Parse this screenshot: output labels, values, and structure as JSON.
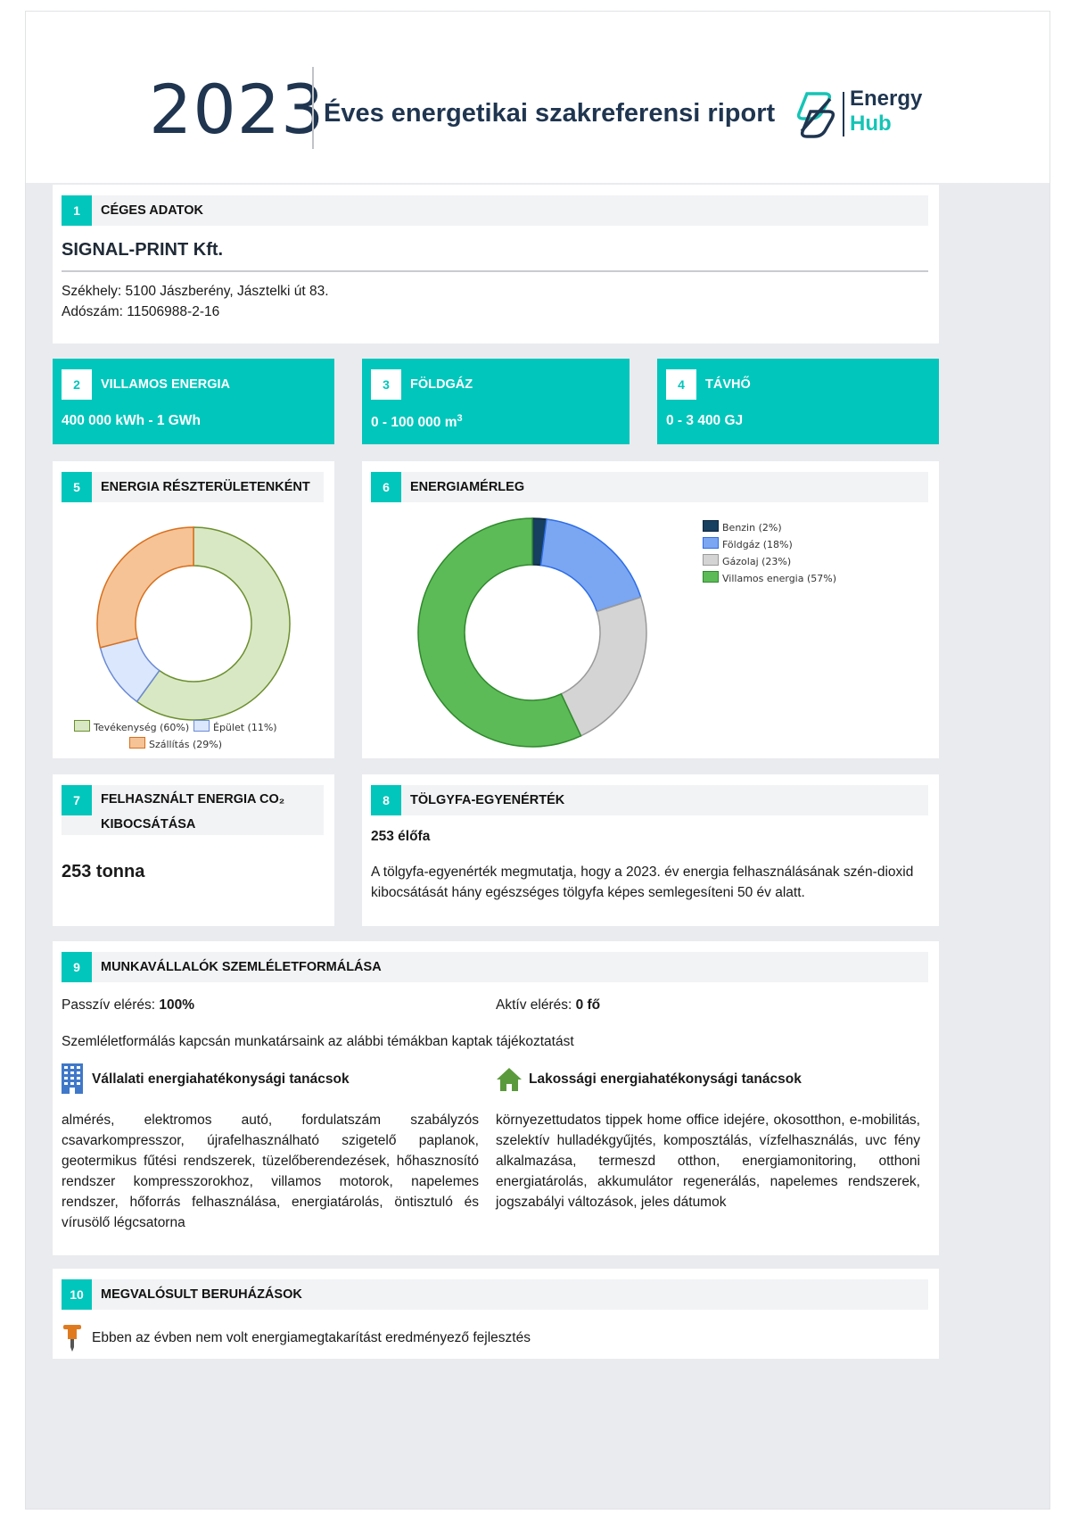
{
  "header": {
    "year": "2023",
    "title": "Éves energetikai szakreferensi riport",
    "logo_line1": "Energy",
    "logo_line2": "Hub"
  },
  "s1": {
    "num": "1",
    "title": "CÉGES ADATOK",
    "company": "SIGNAL-PRINT Kft.",
    "address": "Székhely: 5100 Jászberény, Jásztelki út 83.",
    "tax": "Adószám: 11506988-2-16"
  },
  "s2": {
    "num": "2",
    "title": "VILLAMOS ENERGIA",
    "value": "400 000 kWh - 1 GWh"
  },
  "s3": {
    "num": "3",
    "title": "FÖLDGÁZ",
    "value": "0 - 100 000 m",
    "sup": "3"
  },
  "s4": {
    "num": "4",
    "title": "TÁVHŐ",
    "value": "0 - 3 400 GJ"
  },
  "s5": {
    "num": "5",
    "title": "ENERGIA RÉSZTERÜLETENKÉNT"
  },
  "s6": {
    "num": "6",
    "title": "ENERGIAMÉRLEG"
  },
  "chart_data": [
    {
      "type": "pie",
      "categories": [
        "Tevékenység (60%)",
        "Épület (11%)",
        "Szállítás (29%)"
      ],
      "values": [
        60,
        11,
        29
      ],
      "colors": [
        "#d9e8c4",
        "#dbe7fc",
        "#f5c396"
      ],
      "stroke_colors": [
        "#6b8f2e",
        "#6b8ad6",
        "#d96f1c"
      ],
      "legend": "bottom"
    },
    {
      "type": "pie",
      "categories": [
        "Benzin (2%)",
        "Földgáz (18%)",
        "Gázolaj (23%)",
        "Villamos energia (57%)"
      ],
      "values": [
        2,
        18,
        23,
        57
      ],
      "colors": [
        "#173f5f",
        "#7ba6f2",
        "#d4d4d4",
        "#5dbb57"
      ],
      "stroke_colors": [
        "#0c2740",
        "#2e6ee6",
        "#9a9a9a",
        "#2f8a2d"
      ],
      "legend": "top-right"
    }
  ],
  "s7": {
    "num": "7",
    "title_line1": "FELHASZNÁLT ENERGIA CO₂",
    "title_line2": "KIBOCSÁTÁSA",
    "value": "253 tonna"
  },
  "s8": {
    "num": "8",
    "title": "TÖLGYFA-EGYENÉRTÉK",
    "value": "253 élőfa",
    "text": "A tölgyfa-egyenérték megmutatja, hogy a 2023. év energia felhasználásának szén-dioxid kibocsátását hány egészséges tölgyfa képes semlegesíteni 50 év alatt."
  },
  "s9": {
    "num": "9",
    "title": "MUNKAVÁLLALÓK SZEMLÉLETFORMÁLÁSA",
    "passive_label": "Passzív elérés: ",
    "passive_value": "100%",
    "active_label": "Aktív elérés: ",
    "active_value": "0 fő",
    "intro": "Szemléletformálás kapcsán munkatársaink az alábbi témákban kaptak tájékoztatást",
    "left_title": "Vállalati energiahatékonysági tanácsok",
    "left_text": "almérés, elektromos autó, fordulatszám szabályzós csavarkompresszor, újrafelhasználható szigetelő paplanok, geotermikus fűtési rendszerek, tüzelőberendezések, hőhasznosító rendszer kompresszorokhoz, villamos motorok, napelemes rendszer, hőforrás felhasználása, energiatárolás, öntisztuló és vírusölő légcsatorna",
    "right_title": "Lakossági energiahatékonysági tanácsok",
    "right_text": "környezettudatos tippek home office idejére, okosotthon, e-mobilitás, szelektív hulladékgyűjtés, komposztálás, vízfelhasználás, uvc fény alkalmazása, termeszd otthon, energiamonitoring, otthoni energiatárolás, akkumulátor regenerálás, napelemes rendszerek, jogszabályi változások, jeles dátumok"
  },
  "s10": {
    "num": "10",
    "title": "MEGVALÓSULT BERUHÁZÁSOK",
    "text": "Ebben az évben nem volt energiamegtakarítást eredményező fejlesztés"
  }
}
